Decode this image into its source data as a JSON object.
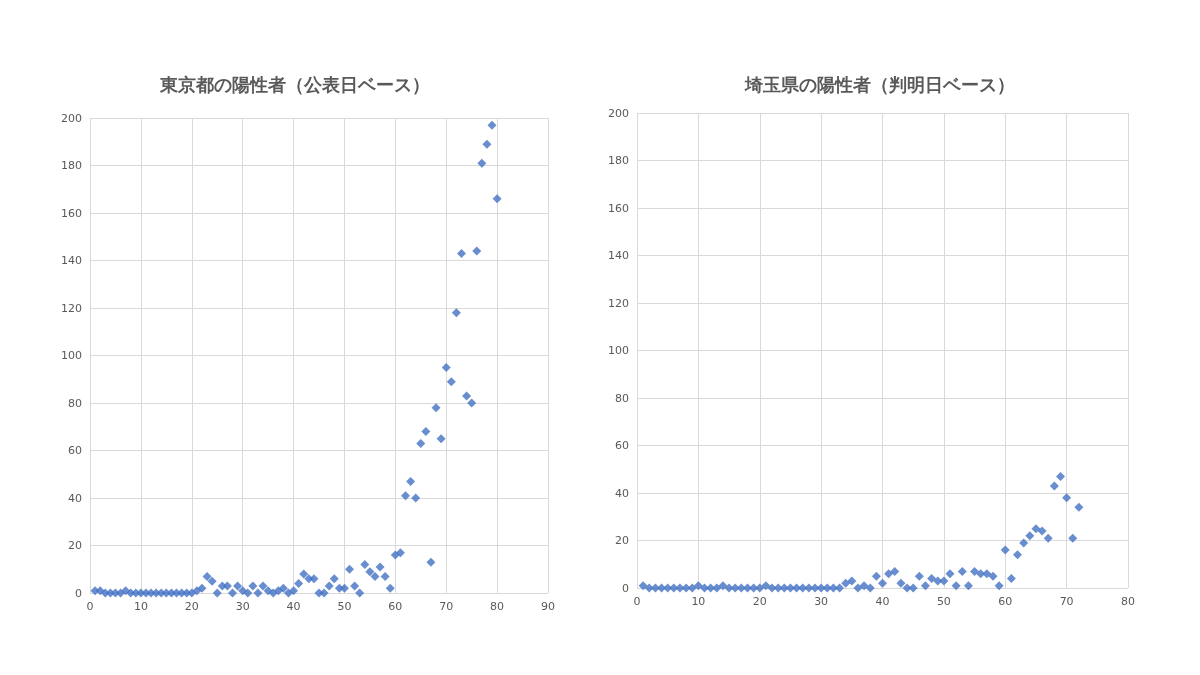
{
  "chart_data": [
    {
      "type": "scatter",
      "title": "東京都の陽性者（公表日ベース）",
      "marker": "diamond",
      "grid": true,
      "xlim": [
        0,
        90
      ],
      "xticks": [
        0,
        10,
        20,
        30,
        40,
        50,
        60,
        70,
        80,
        90
      ],
      "ylim": [
        0,
        200
      ],
      "yticks": [
        0,
        20,
        40,
        60,
        80,
        100,
        120,
        140,
        160,
        180,
        200
      ],
      "x": [
        1,
        2,
        3,
        4,
        5,
        6,
        7,
        8,
        9,
        10,
        11,
        12,
        13,
        14,
        15,
        16,
        17,
        18,
        19,
        20,
        21,
        22,
        23,
        24,
        25,
        26,
        27,
        28,
        29,
        30,
        31,
        32,
        33,
        34,
        35,
        36,
        37,
        38,
        39,
        40,
        41,
        42,
        43,
        44,
        45,
        46,
        47,
        48,
        49,
        50,
        51,
        52,
        53,
        54,
        55,
        56,
        57,
        58,
        59,
        60,
        61,
        62,
        63,
        64,
        65,
        66,
        67,
        68,
        69,
        70,
        71,
        72,
        73,
        74,
        75,
        76,
        77,
        78,
        79,
        80
      ],
      "series": [
        {
          "color": "#4472c4",
          "values": [
            1,
            1,
            0,
            0,
            0,
            0,
            1,
            0,
            0,
            0,
            0,
            0,
            0,
            0,
            0,
            0,
            0,
            0,
            0,
            0,
            1,
            2,
            7,
            5,
            0,
            3,
            3,
            0,
            3,
            1,
            0,
            3,
            0,
            3,
            1,
            0,
            1,
            2,
            0,
            1,
            4,
            8,
            6,
            6,
            0,
            0,
            3,
            6,
            2,
            2,
            10,
            3,
            0,
            12,
            9,
            7,
            11,
            7,
            2,
            16,
            17,
            41,
            47,
            40,
            63,
            68,
            13,
            78,
            65,
            95,
            89,
            118,
            143,
            83,
            80,
            144,
            181,
            189,
            197,
            166
          ]
        }
      ]
    },
    {
      "type": "scatter",
      "title": "埼玉県の陽性者（判明日ベース）",
      "marker": "diamond",
      "grid": true,
      "xlim": [
        0,
        80
      ],
      "xticks": [
        0,
        10,
        20,
        30,
        40,
        50,
        60,
        70,
        80
      ],
      "ylim": [
        0,
        200
      ],
      "yticks": [
        0,
        20,
        40,
        60,
        80,
        100,
        120,
        140,
        160,
        180,
        200
      ],
      "x": [
        1,
        2,
        3,
        4,
        5,
        6,
        7,
        8,
        9,
        10,
        11,
        12,
        13,
        14,
        15,
        16,
        17,
        18,
        19,
        20,
        21,
        22,
        23,
        24,
        25,
        26,
        27,
        28,
        29,
        30,
        31,
        32,
        33,
        34,
        35,
        36,
        37,
        38,
        39,
        40,
        41,
        42,
        43,
        44,
        45,
        46,
        47,
        48,
        49,
        50,
        51,
        52,
        53,
        54,
        55,
        56,
        57,
        58,
        59,
        60,
        61,
        62,
        63,
        64,
        65,
        66,
        67,
        68,
        69,
        70,
        71,
        72
      ],
      "series": [
        {
          "color": "#4472c4",
          "values": [
            1,
            0,
            0,
            0,
            0,
            0,
            0,
            0,
            0,
            1,
            0,
            0,
            0,
            1,
            0,
            0,
            0,
            0,
            0,
            0,
            1,
            0,
            0,
            0,
            0,
            0,
            0,
            0,
            0,
            0,
            0,
            0,
            0,
            2,
            3,
            0,
            1,
            0,
            5,
            2,
            6,
            7,
            2,
            0,
            0,
            5,
            1,
            4,
            3,
            3,
            6,
            1,
            7,
            1,
            7,
            6,
            6,
            5,
            1,
            16,
            4,
            14,
            19,
            22,
            25,
            24,
            21,
            43,
            47,
            38,
            21,
            34
          ]
        }
      ]
    }
  ]
}
